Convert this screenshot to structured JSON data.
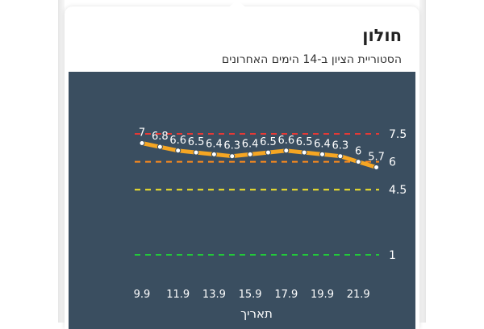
{
  "card": {
    "title": "חולון",
    "subtitle": "הסטוריית הציון ב-14 הימים האחרונים"
  },
  "chart_data": {
    "type": "line",
    "background_color": "#3a4e60",
    "line_color": "#f5a623",
    "marker_color": "#ffffff",
    "x": [
      "9.9",
      "10.9",
      "11.9",
      "12.9",
      "13.9",
      "14.9",
      "15.9",
      "16.9",
      "17.9",
      "18.9",
      "19.9",
      "20.9",
      "21.9",
      "22.9"
    ],
    "x_tick_labels": [
      "9.9",
      "11.9",
      "13.9",
      "15.9",
      "17.9",
      "19.9",
      "21.9"
    ],
    "series": [
      {
        "values": [
          7,
          6.8,
          6.6,
          6.5,
          6.4,
          6.3,
          6.4,
          6.5,
          6.6,
          6.5,
          6.4,
          6.3,
          6,
          5.7
        ],
        "value_labels": [
          "7",
          "6.8",
          "6.6",
          "6.5",
          "6.4",
          "6.3",
          "6.4",
          "6.5",
          "6.6",
          "6.5",
          "6.4",
          "6.3",
          "6",
          "5.7"
        ]
      }
    ],
    "xlabel": "תאריך",
    "ylabel": "",
    "grid": false,
    "thresholds": [
      {
        "value": 7.5,
        "label": "7.5",
        "color": "#e53935"
      },
      {
        "value": 6,
        "label": "6",
        "color": "#ff8c1a"
      },
      {
        "value": 4.5,
        "label": "4.5",
        "color": "#f5e52a"
      },
      {
        "value": 1,
        "label": "1",
        "color": "#22c93a"
      }
    ]
  }
}
